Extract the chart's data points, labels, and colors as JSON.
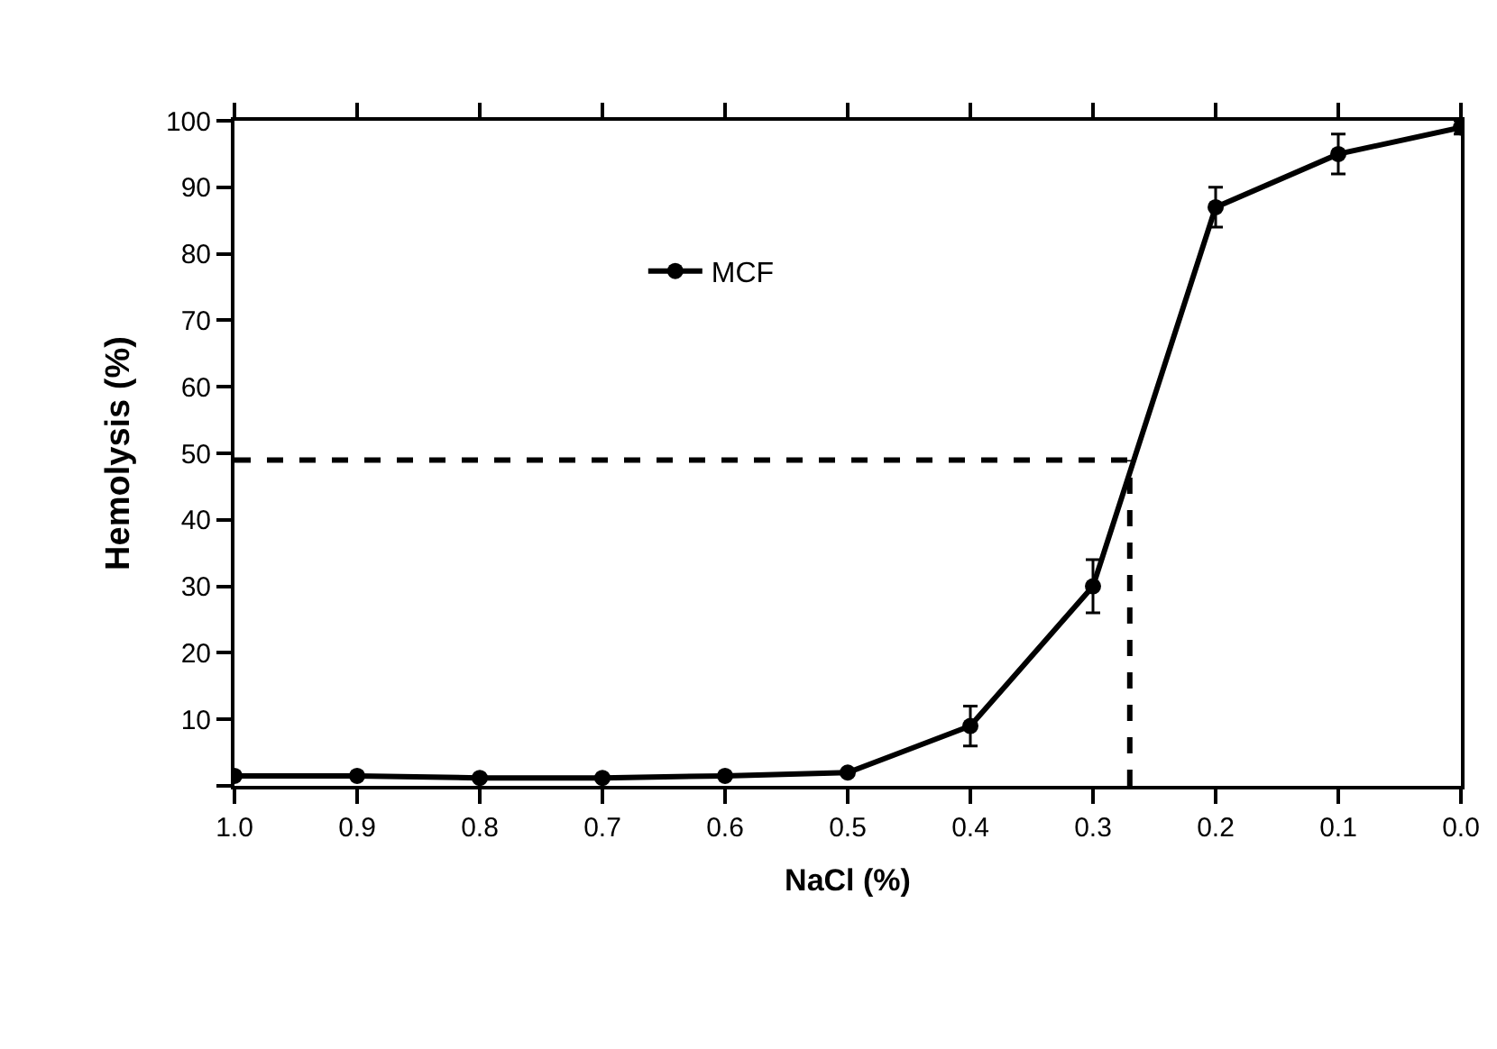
{
  "chart_data": {
    "type": "line",
    "xlabel": "NaCl (%)",
    "ylabel": "Hemolysis (%)",
    "x": [
      1.0,
      0.9,
      0.8,
      0.7,
      0.6,
      0.5,
      0.4,
      0.3,
      0.2,
      0.1,
      0.0
    ],
    "series": [
      {
        "name": "MCF",
        "color": "#000000",
        "values": [
          1.5,
          1.5,
          1.2,
          1.2,
          1.5,
          2,
          9,
          30,
          87,
          95,
          99
        ],
        "errors": [
          null,
          null,
          null,
          null,
          null,
          null,
          3,
          4,
          3,
          3,
          1
        ]
      }
    ],
    "xlim": [
      1.0,
      0.0
    ],
    "xticks": [
      {
        "value": 1.0,
        "label": "1.0"
      },
      {
        "value": 0.9,
        "label": "0.9"
      },
      {
        "value": 0.8,
        "label": "0.8"
      },
      {
        "value": 0.7,
        "label": "0.7"
      },
      {
        "value": 0.6,
        "label": "0.6"
      },
      {
        "value": 0.5,
        "label": "0.5"
      },
      {
        "value": 0.4,
        "label": "0.4"
      },
      {
        "value": 0.3,
        "label": "0.3"
      },
      {
        "value": 0.2,
        "label": "0.2"
      },
      {
        "value": 0.1,
        "label": "0.1"
      },
      {
        "value": 0.0,
        "label": "0.0"
      }
    ],
    "ylim": [
      0,
      100
    ],
    "yticks": [
      {
        "value": 0,
        "label": null
      },
      10,
      20,
      30,
      40,
      50,
      60,
      70,
      80,
      90,
      100
    ],
    "ref_lines": [
      {
        "axis": "y",
        "value": 49,
        "line_style": "dashed",
        "color": "#000000"
      },
      {
        "axis": "x",
        "value": 0.27,
        "line_style": "dashed",
        "color": "#000000"
      }
    ],
    "legend": "top left",
    "marker": "circle",
    "line_style": "solid",
    "grid": false
  }
}
